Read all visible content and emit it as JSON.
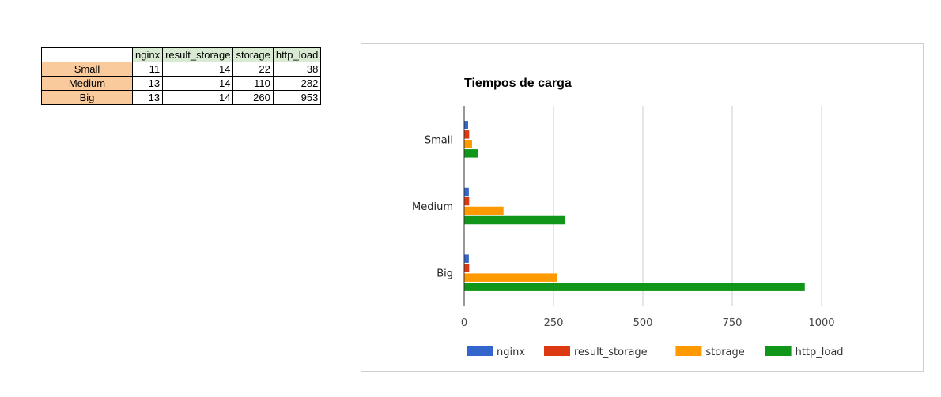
{
  "table": {
    "columns": [
      "",
      "nginx",
      "result_storage",
      "storage",
      "http_load"
    ],
    "rows": [
      {
        "label": "Small",
        "values": [
          11,
          14,
          22,
          38
        ]
      },
      {
        "label": "Medium",
        "values": [
          13,
          14,
          110,
          282
        ]
      },
      {
        "label": "Big",
        "values": [
          13,
          14,
          260,
          953
        ]
      }
    ]
  },
  "chart_data": {
    "type": "bar",
    "orientation": "horizontal",
    "title": "Tiempos de carga",
    "categories": [
      "Small",
      "Medium",
      "Big"
    ],
    "series": [
      {
        "name": "nginx",
        "color": "#3366cc",
        "values": [
          11,
          13,
          13
        ]
      },
      {
        "name": "result_storage",
        "color": "#dc3912",
        "values": [
          14,
          14,
          14
        ]
      },
      {
        "name": "storage",
        "color": "#ff9900",
        "values": [
          22,
          110,
          260
        ]
      },
      {
        "name": "http_load",
        "color": "#109618",
        "values": [
          38,
          282,
          953
        ]
      }
    ],
    "xlim": [
      0,
      1000
    ],
    "xticks": [
      0,
      250,
      500,
      750,
      1000
    ],
    "grid": true,
    "legend": "bottom"
  }
}
